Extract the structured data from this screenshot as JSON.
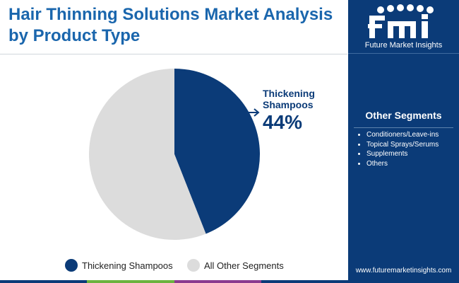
{
  "title": "Hair Thinning Solutions Market Analysis by Product Type",
  "brand": {
    "name": "Future Market Insights",
    "logo_text": "fmi",
    "website": "www.futuremarketinsights.com"
  },
  "callout": {
    "label_line1": "Thickening",
    "label_line2": "Shampoos",
    "value": "44%"
  },
  "sidebar": {
    "title": "Other Segments",
    "items": [
      "Conditioners/Leave-ins",
      "Topical Sprays/Serums",
      "Supplements",
      "Others"
    ]
  },
  "colors": {
    "primary": "#0b3b78",
    "secondary": "#dcdcdc",
    "title": "#1a66ad",
    "bottom_bar": [
      "#0b3b78",
      "#6cb33f",
      "#8b3a8f",
      "#0b3b78"
    ]
  },
  "chart_data": {
    "type": "pie",
    "title": "Hair Thinning Solutions Market Analysis by Product Type",
    "slices": [
      {
        "name": "Thickening Shampoos",
        "value": 44,
        "color": "#0b3b78"
      },
      {
        "name": "All Other Segments",
        "value": 56,
        "color": "#dcdcdc"
      }
    ],
    "start_angle": "top, clockwise",
    "legend_position": "bottom"
  }
}
